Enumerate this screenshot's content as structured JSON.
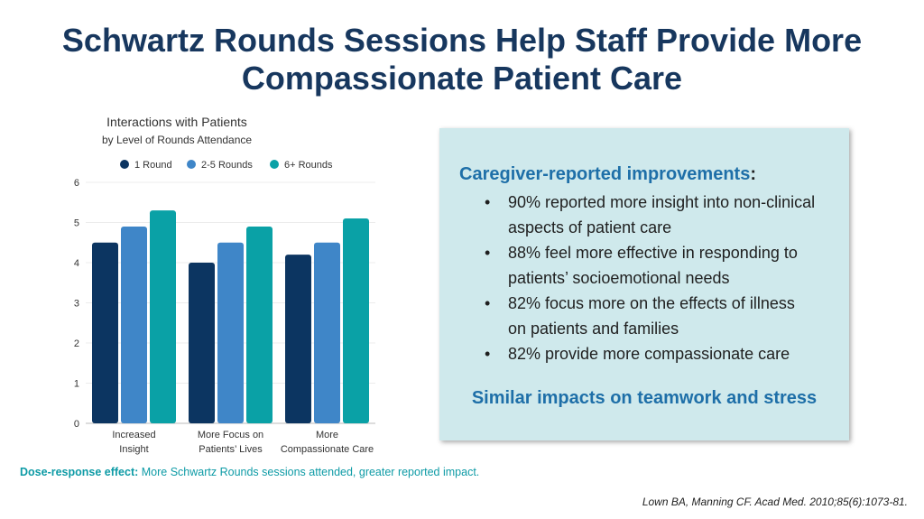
{
  "slide": {
    "title_line1": "Schwartz Rounds Sessions Help Staff Provide More",
    "title_line2": "Compassionate Patient Care"
  },
  "chart_data": {
    "type": "bar",
    "title": "Interactions with Patients",
    "subtitle": "by Level of Rounds Attendance",
    "categories": [
      [
        "Increased",
        "Insight"
      ],
      [
        "More Focus on",
        "Patients’ Lives"
      ],
      [
        "More",
        "Compassionate Care"
      ]
    ],
    "series": [
      {
        "name": "1 Round",
        "color": "#0c3561",
        "values": [
          4.5,
          4.0,
          4.2
        ]
      },
      {
        "name": "2-5 Rounds",
        "color": "#3f86c8",
        "values": [
          4.9,
          4.5,
          4.5
        ]
      },
      {
        "name": "6+ Rounds",
        "color": "#0aa1a6",
        "values": [
          5.3,
          4.9,
          5.1
        ]
      }
    ],
    "ylim": [
      0,
      6
    ],
    "yticks": [
      0,
      1,
      2,
      3,
      4,
      5,
      6
    ],
    "grid": true,
    "legend_position": "top"
  },
  "panel": {
    "heading": "Caregiver-reported improvements",
    "heading_colon": ":",
    "bullet_char": "•",
    "items": [
      [
        "90% reported more insight into non-clinical",
        "aspects of patient care"
      ],
      [
        "88% feel more effective in responding to",
        "patients’ socioemotional needs"
      ],
      [
        "82% focus more on the effects of illness",
        "on patients and families"
      ],
      [
        "82% provide more compassionate care"
      ]
    ],
    "footer": "Similar impacts on teamwork and stress"
  },
  "dose_response": {
    "label": "Dose-response effect:",
    "text": " More Schwartz Rounds sessions attended, greater reported impact."
  },
  "citation": "Lown BA, Manning CF. Acad Med. 2010;85(6):1073-81.",
  "colors": {
    "title": "#17375e",
    "panel_bg": "#cfe9ec",
    "panel_accent": "#1e6fa8",
    "dose_text": "#0e9ba6"
  }
}
